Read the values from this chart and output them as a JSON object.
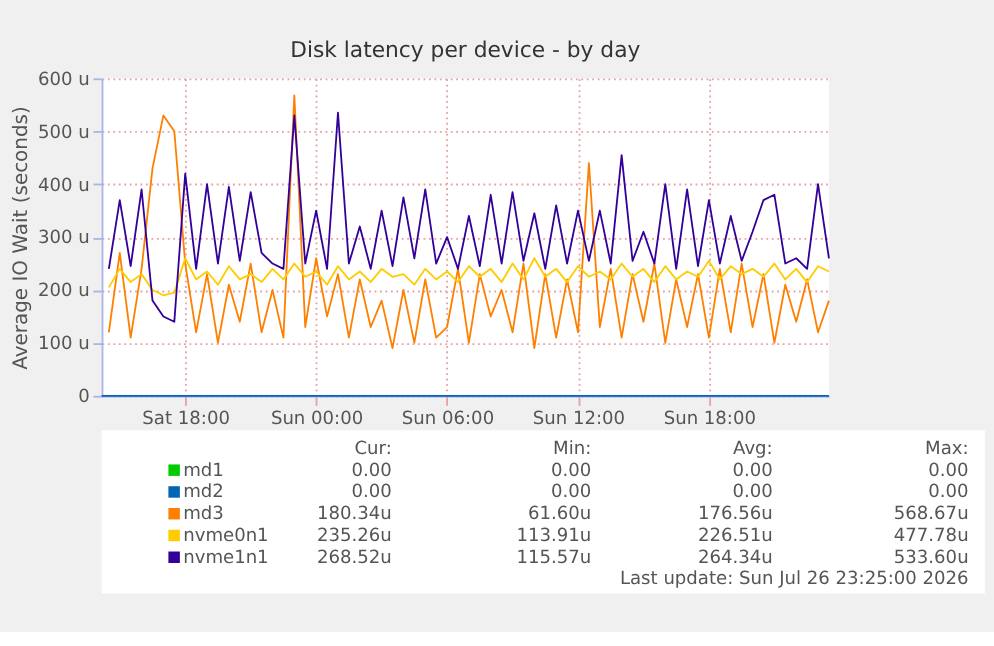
{
  "chart_data": {
    "type": "line",
    "title": "Disk latency per device - by day",
    "ylabel": "Average IO Wait (seconds)",
    "xlim": [
      "2026-07-25T14:10",
      "2026-07-26T23:30"
    ],
    "xticks": [
      {
        "value": "2026-07-25T18:00",
        "label": "Sat 18:00"
      },
      {
        "value": "2026-07-26T00:00",
        "label": "Sun 00:00"
      },
      {
        "value": "2026-07-26T06:00",
        "label": "Sun 06:00"
      },
      {
        "value": "2026-07-26T12:00",
        "label": "Sun 12:00"
      },
      {
        "value": "2026-07-26T18:00",
        "label": "Sun 18:00"
      }
    ],
    "ylim": [
      0,
      600
    ],
    "yticks": [
      0,
      {
        "value": 100,
        "label": "100 u"
      },
      {
        "value": 200,
        "label": "200 u"
      },
      {
        "value": 300,
        "label": "300 u"
      },
      {
        "value": 400,
        "label": "400 u"
      },
      {
        "value": 500,
        "label": "500 u"
      },
      {
        "value": 600,
        "label": "600 u"
      }
    ],
    "grid": true,
    "legend": "bottom",
    "x": [
      "2026-07-25T14:30",
      "2026-07-25T15:00",
      "2026-07-25T15:30",
      "2026-07-25T16:00",
      "2026-07-25T16:30",
      "2026-07-25T17:00",
      "2026-07-25T17:30",
      "2026-07-25T18:00",
      "2026-07-25T18:30",
      "2026-07-25T19:00",
      "2026-07-25T19:30",
      "2026-07-25T20:00",
      "2026-07-25T20:30",
      "2026-07-25T21:00",
      "2026-07-25T21:30",
      "2026-07-25T22:00",
      "2026-07-25T22:30",
      "2026-07-25T23:00",
      "2026-07-25T23:30",
      "2026-07-26T00:00",
      "2026-07-26T00:30",
      "2026-07-26T01:00",
      "2026-07-26T01:30",
      "2026-07-26T02:00",
      "2026-07-26T02:30",
      "2026-07-26T03:00",
      "2026-07-26T03:30",
      "2026-07-26T04:00",
      "2026-07-26T04:30",
      "2026-07-26T05:00",
      "2026-07-26T05:30",
      "2026-07-26T06:00",
      "2026-07-26T06:30",
      "2026-07-26T07:00",
      "2026-07-26T07:30",
      "2026-07-26T08:00",
      "2026-07-26T08:30",
      "2026-07-26T09:00",
      "2026-07-26T09:30",
      "2026-07-26T10:00",
      "2026-07-26T10:30",
      "2026-07-26T11:00",
      "2026-07-26T11:30",
      "2026-07-26T12:00",
      "2026-07-26T12:30",
      "2026-07-26T13:00",
      "2026-07-26T13:30",
      "2026-07-26T14:00",
      "2026-07-26T14:30",
      "2026-07-26T15:00",
      "2026-07-26T15:30",
      "2026-07-26T16:00",
      "2026-07-26T16:30",
      "2026-07-26T17:00",
      "2026-07-26T17:30",
      "2026-07-26T18:00",
      "2026-07-26T18:30",
      "2026-07-26T19:00",
      "2026-07-26T19:30",
      "2026-07-26T20:00",
      "2026-07-26T20:30",
      "2026-07-26T21:00",
      "2026-07-26T21:30",
      "2026-07-26T22:00",
      "2026-07-26T22:30",
      "2026-07-26T23:00",
      "2026-07-26T23:30"
    ],
    "series": [
      {
        "name": "md1",
        "color": "#00cc00",
        "values": [
          null,
          null,
          null,
          null,
          null,
          null,
          null,
          null,
          null,
          null,
          null,
          null,
          null,
          null,
          null,
          null,
          null,
          null,
          null,
          null,
          null,
          null,
          null,
          null,
          null,
          null,
          null,
          null,
          null,
          null,
          null,
          null,
          null,
          null,
          null,
          null,
          null,
          null,
          null,
          null,
          null,
          null,
          null,
          null,
          null,
          null,
          null,
          null,
          null,
          null,
          null,
          null,
          null,
          null,
          null,
          null,
          null,
          null,
          null,
          null,
          null,
          null,
          null,
          null,
          null,
          null,
          null
        ]
      },
      {
        "name": "md2",
        "color": "#0066b3",
        "x": [
          "2026-07-25T14:10",
          "2026-07-26T23:30"
        ],
        "values": [
          0,
          0
        ]
      },
      {
        "name": "md3",
        "color": "#ff8000",
        "values": [
          120,
          270,
          110,
          240,
          430,
          530,
          500,
          250,
          120,
          230,
          100,
          210,
          140,
          250,
          120,
          200,
          110,
          568,
          130,
          260,
          150,
          230,
          110,
          220,
          130,
          180,
          90,
          200,
          100,
          220,
          110,
          130,
          240,
          100,
          230,
          150,
          200,
          120,
          250,
          90,
          230,
          110,
          220,
          120,
          440,
          130,
          240,
          110,
          230,
          140,
          250,
          100,
          220,
          130,
          230,
          110,
          240,
          120,
          250,
          130,
          230,
          100,
          210,
          140,
          220,
          120,
          180
        ]
      },
      {
        "name": "nvme0n1",
        "color": "#ffcc00",
        "values": [
          205,
          240,
          215,
          230,
          200,
          190,
          195,
          260,
          220,
          235,
          210,
          245,
          220,
          230,
          215,
          240,
          220,
          250,
          225,
          235,
          210,
          245,
          220,
          235,
          215,
          240,
          225,
          230,
          210,
          240,
          220,
          235,
          215,
          245,
          225,
          240,
          215,
          250,
          220,
          260,
          225,
          240,
          215,
          245,
          225,
          235,
          220,
          250,
          225,
          240,
          215,
          245,
          220,
          235,
          225,
          255,
          220,
          245,
          230,
          240,
          225,
          250,
          220,
          240,
          215,
          245,
          235
        ]
      },
      {
        "name": "nvme1n1",
        "color": "#330099",
        "values": [
          240,
          370,
          245,
          390,
          180,
          150,
          140,
          420,
          240,
          400,
          250,
          395,
          255,
          385,
          270,
          250,
          240,
          530,
          250,
          350,
          240,
          535,
          250,
          320,
          240,
          350,
          245,
          375,
          260,
          390,
          250,
          300,
          240,
          340,
          245,
          380,
          250,
          385,
          255,
          345,
          240,
          360,
          250,
          350,
          255,
          350,
          250,
          455,
          255,
          310,
          250,
          400,
          240,
          390,
          245,
          370,
          250,
          340,
          255,
          310,
          370,
          380,
          250,
          260,
          240,
          400,
          260
        ]
      }
    ],
    "annotations": [
      "Cur:",
      "Min:",
      "Avg:",
      "Max:",
      "0.00",
      "0.00",
      "0.00",
      "0.00",
      "0.00",
      "0.00",
      "0.00",
      "0.00",
      "180.34u",
      "61.60u",
      "176.56u",
      "568.67u",
      "235.26u",
      "113.91u",
      "226.51u",
      "477.78u",
      "268.52u",
      "115.57u",
      "264.34u",
      "533.60u",
      "Last update: Sun Jul 26 23:25:00 2026"
    ]
  }
}
